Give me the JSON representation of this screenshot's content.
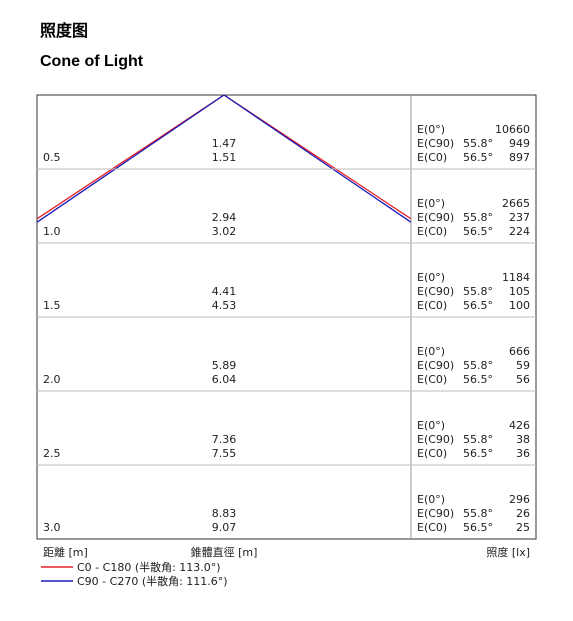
{
  "header": {
    "title": "照度图",
    "subtitle": "Cone of Light"
  },
  "labels": {
    "e0": "E(0°)",
    "ec90": "E(C90)",
    "ec0": "E(C0)",
    "angle_c90": "55.8°",
    "angle_c0": "56.5°"
  },
  "rows": [
    {
      "distance": "0.5",
      "diameter_c90": "1.47",
      "diameter_c0": "1.51",
      "e0": "10660",
      "ec90": "949",
      "ec0": "897"
    },
    {
      "distance": "1.0",
      "diameter_c90": "2.94",
      "diameter_c0": "3.02",
      "e0": "2665",
      "ec90": "237",
      "ec0": "224"
    },
    {
      "distance": "1.5",
      "diameter_c90": "4.41",
      "diameter_c0": "4.53",
      "e0": "1184",
      "ec90": "105",
      "ec0": "100"
    },
    {
      "distance": "2.0",
      "diameter_c90": "5.89",
      "diameter_c0": "6.04",
      "e0": "666",
      "ec90": "59",
      "ec0": "56"
    },
    {
      "distance": "2.5",
      "diameter_c90": "7.36",
      "diameter_c0": "7.55",
      "e0": "426",
      "ec90": "38",
      "ec0": "36"
    },
    {
      "distance": "3.0",
      "diameter_c90": "8.83",
      "diameter_c0": "9.07",
      "e0": "296",
      "ec90": "26",
      "ec0": "25"
    }
  ],
  "footer": {
    "distance_label": "距離 [m]",
    "diameter_label": "錐體直徑 [m]",
    "illuminance_label": "照度 [lx]"
  },
  "legend": [
    {
      "name": "C0 - C180 (半散角: 113.0°)",
      "color": "#e8202a"
    },
    {
      "name": "C90 - C270 (半散角: 111.6°)",
      "color": "#1a1ab8"
    }
  ]
}
